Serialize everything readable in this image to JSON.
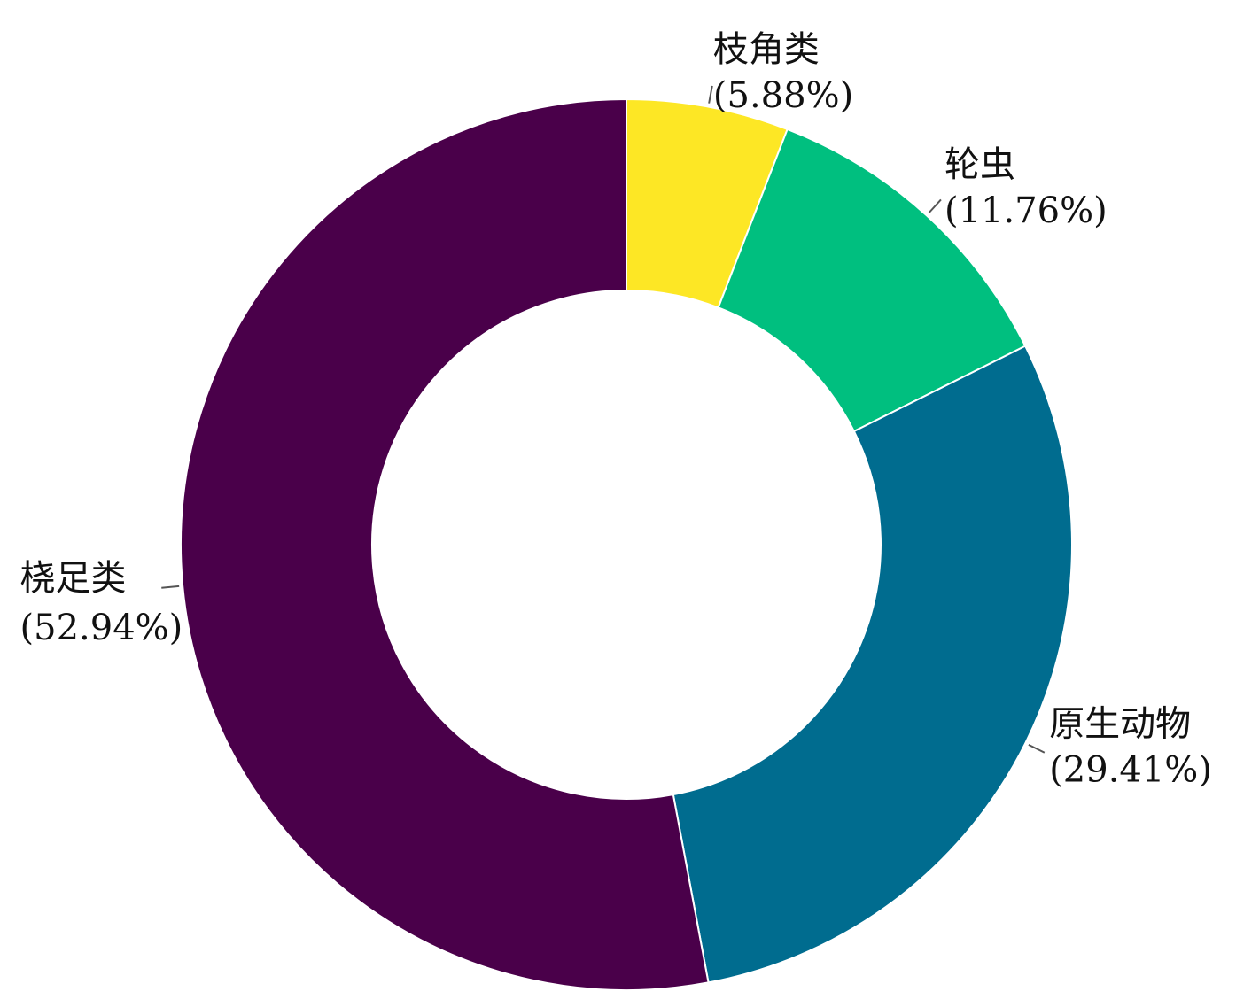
{
  "chart_data": {
    "type": "donut",
    "categories": [
      "枝角类",
      "轮虫",
      "原生动物",
      "桡足类"
    ],
    "values": [
      5.88,
      11.76,
      29.41,
      52.94
    ],
    "value_labels": [
      "(5.88%)",
      "(11.76%)",
      "(29.41%)",
      "(52.94%)"
    ],
    "colors": [
      "#fde725",
      "#00bf7f",
      "#006c8f",
      "#4a004a"
    ]
  }
}
